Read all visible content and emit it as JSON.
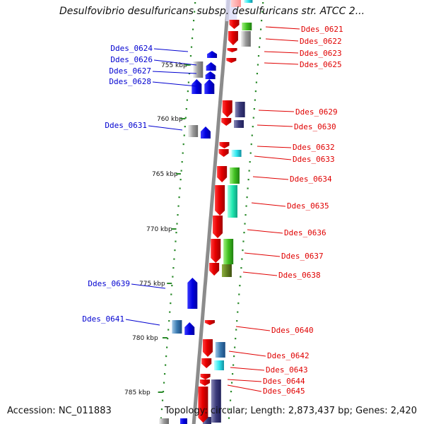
{
  "title": "Desulfovibrio desulfuricans subsp. desulfuricans str. ATCC 2...",
  "footer": {
    "accession": "Accession: NC_011883",
    "summary": "Topology: circular; Length: 2,873,437 bp; Genes: 2,420"
  },
  "colors": {
    "forward_label": "#0000d0",
    "reverse_label": "#e00000",
    "backbone": "#8c8c8c",
    "ticks": "#2a8a2a"
  },
  "scale_labels": [
    "755 kbp",
    "760 kbp",
    "765 kbp",
    "770 kbp",
    "775 kbp",
    "780 kbp",
    "785 kbp"
  ],
  "forward_genes": [
    {
      "label": "Ddes_0624"
    },
    {
      "label": "Ddes_0626"
    },
    {
      "label": "Ddes_0627"
    },
    {
      "label": "Ddes_0628"
    },
    {
      "label": "Ddes_0631"
    },
    {
      "label": "Ddes_0639"
    },
    {
      "label": "Ddes_0641"
    }
  ],
  "reverse_genes": [
    {
      "label": "Ddes_0621"
    },
    {
      "label": "Ddes_0622"
    },
    {
      "label": "Ddes_0623"
    },
    {
      "label": "Ddes_0625"
    },
    {
      "label": "Ddes_0629"
    },
    {
      "label": "Ddes_0630"
    },
    {
      "label": "Ddes_0632"
    },
    {
      "label": "Ddes_0633"
    },
    {
      "label": "Ddes_0634"
    },
    {
      "label": "Ddes_0635"
    },
    {
      "label": "Ddes_0636"
    },
    {
      "label": "Ddes_0637"
    },
    {
      "label": "Ddes_0638"
    },
    {
      "label": "Ddes_0640"
    },
    {
      "label": "Ddes_0642"
    },
    {
      "label": "Ddes_0643"
    },
    {
      "label": "Ddes_0644"
    },
    {
      "label": "Ddes_0645"
    }
  ]
}
